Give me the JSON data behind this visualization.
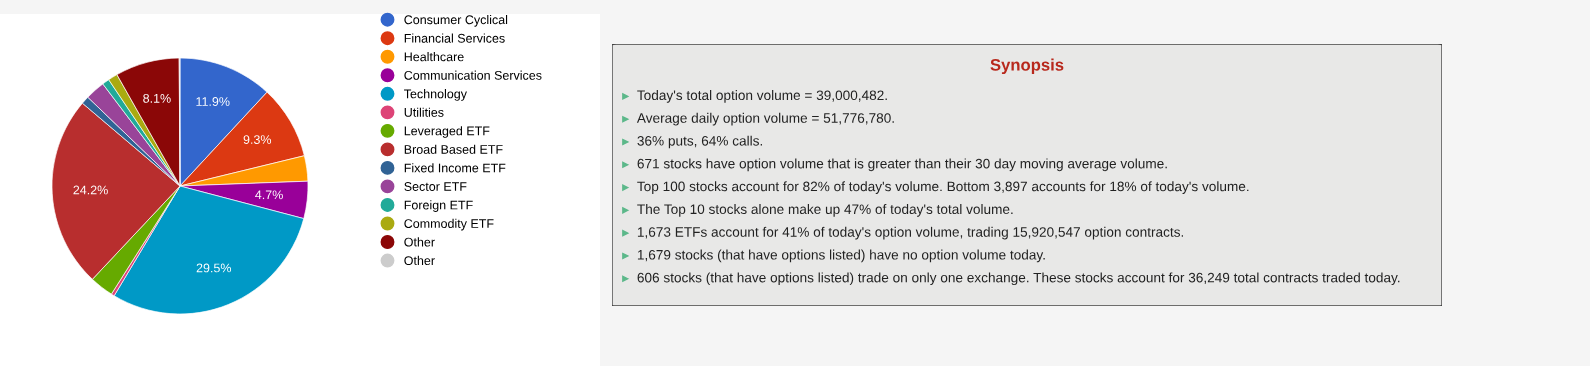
{
  "chart_data": [
    {
      "type": "pie",
      "categories": [
        "Consumer Cyclical",
        "Financial Services",
        "Healthcare",
        "Communication Services",
        "Technology",
        "Utilities",
        "Leveraged ETF",
        "Broad Based ETF",
        "Fixed Income ETF",
        "Sector ETF",
        "Foreign ETF",
        "Commodity ETF",
        "Other",
        "Other"
      ],
      "values": [
        11.9,
        9.3,
        3.2,
        4.7,
        29.5,
        0.4,
        3.0,
        24.2,
        1.0,
        2.5,
        0.9,
        1.2,
        8.1,
        0.1
      ],
      "colors": [
        "#3366cc",
        "#dc3912",
        "#ff9900",
        "#990099",
        "#0099c6",
        "#dd4477",
        "#66aa00",
        "#b82e2e",
        "#316395",
        "#994499",
        "#22aa99",
        "#aaaa11",
        "#8b0707",
        "#cccccc"
      ],
      "value_labels": [
        "11.9%",
        "9.3%",
        null,
        "4.7%",
        "29.5%",
        null,
        null,
        "24.2%",
        null,
        null,
        null,
        null,
        "8.1%",
        null
      ],
      "legend": "right",
      "marker": "circle"
    },
    {
      "type": "other",
      "title": "Synopsis",
      "annotations": [
        "Today's total option volume = 39,000,482.",
        "Average daily option volume = 51,776,780.",
        "36% puts, 64% calls.",
        "671 stocks have option volume that is greater than their 30 day moving average volume.",
        "Top 100 stocks account for 82% of today's volume. Bottom 3,897 accounts for 18% of today's volume.",
        "The Top 10 stocks alone make up 47% of today's total volume.",
        "1,673 ETFs account for 41% of today's option volume, trading 15,920,547 option contracts.",
        "1,679 stocks (that have options listed) have no option volume today.",
        "606 stocks (that have options listed) trade on only one exchange. These stocks account for 36,249 total contracts traded today."
      ]
    }
  ]
}
